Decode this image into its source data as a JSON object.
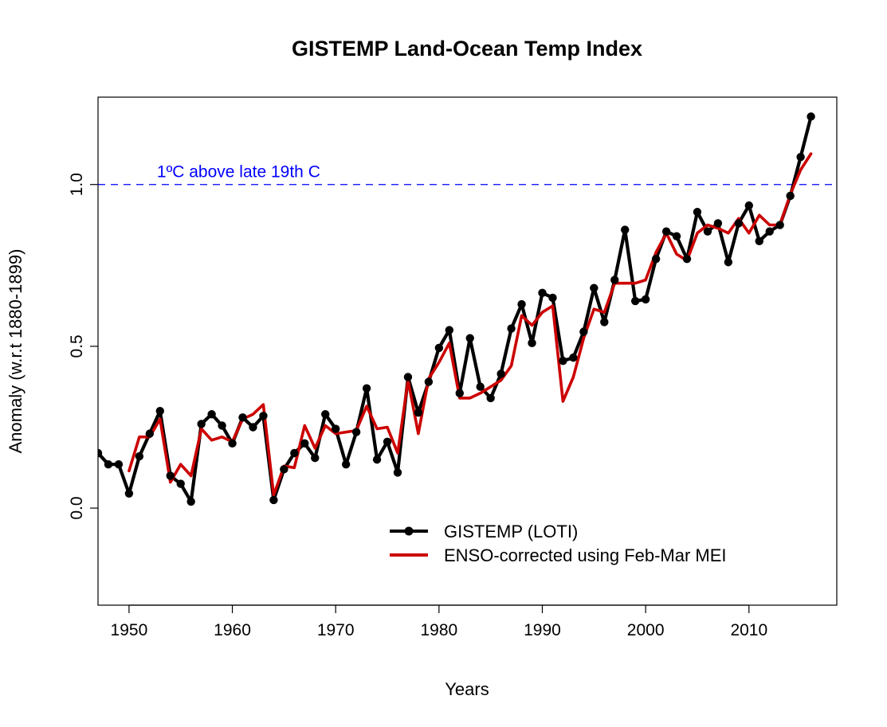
{
  "chart_data": {
    "type": "line",
    "title": "GISTEMP Land-Ocean Temp Index",
    "xlabel": "Years",
    "ylabel": "Anomaly (w.r.t 1880-1899)",
    "xlim": [
      1947,
      2018.5
    ],
    "ylim": [
      -0.3,
      1.27
    ],
    "x_ticks": [
      1950,
      1960,
      1970,
      1980,
      1990,
      2000,
      2010
    ],
    "y_ticks": [
      0.0,
      0.5,
      1.0
    ],
    "y_tick_labels": [
      "0.0",
      "0.5",
      "1.0"
    ],
    "grid": false,
    "legend_position": "bottom-right",
    "reference_line": {
      "y": 1.0,
      "label": "1ºC above late 19th C",
      "color": "#0000ff",
      "style": "dashed"
    },
    "series": [
      {
        "name": "GISTEMP (LOTI)",
        "color": "#000000",
        "markers": true,
        "x": [
          1947,
          1948,
          1949,
          1950,
          1951,
          1952,
          1953,
          1954,
          1955,
          1956,
          1957,
          1958,
          1959,
          1960,
          1961,
          1962,
          1963,
          1964,
          1965,
          1966,
          1967,
          1968,
          1969,
          1970,
          1971,
          1972,
          1973,
          1974,
          1975,
          1976,
          1977,
          1978,
          1979,
          1980,
          1981,
          1982,
          1983,
          1984,
          1985,
          1986,
          1987,
          1988,
          1989,
          1990,
          1991,
          1992,
          1993,
          1994,
          1995,
          1996,
          1997,
          1998,
          1999,
          2000,
          2001,
          2002,
          2003,
          2004,
          2005,
          2006,
          2007,
          2008,
          2009,
          2010,
          2011,
          2012,
          2013,
          2014,
          2015,
          2016
        ],
        "values": [
          0.17,
          0.135,
          0.135,
          0.045,
          0.16,
          0.23,
          0.3,
          0.1,
          0.075,
          0.02,
          0.26,
          0.29,
          0.255,
          0.2,
          0.28,
          0.25,
          0.285,
          0.025,
          0.12,
          0.17,
          0.2,
          0.155,
          0.29,
          0.245,
          0.135,
          0.235,
          0.37,
          0.15,
          0.205,
          0.11,
          0.405,
          0.295,
          0.39,
          0.495,
          0.55,
          0.355,
          0.525,
          0.375,
          0.34,
          0.415,
          0.555,
          0.63,
          0.51,
          0.665,
          0.65,
          0.455,
          0.465,
          0.545,
          0.68,
          0.575,
          0.705,
          0.86,
          0.64,
          0.645,
          0.77,
          0.855,
          0.84,
          0.77,
          0.915,
          0.855,
          0.88,
          0.76,
          0.88,
          0.935,
          0.825,
          0.855,
          0.875,
          0.965,
          1.085,
          1.21
        ]
      },
      {
        "name": "ENSO-corrected using Feb-Mar MEI",
        "color": "#cc0000",
        "markers": false,
        "x": [
          1950,
          1951,
          1952,
          1953,
          1954,
          1955,
          1956,
          1957,
          1958,
          1959,
          1960,
          1961,
          1962,
          1963,
          1964,
          1965,
          1966,
          1967,
          1968,
          1969,
          1970,
          1971,
          1972,
          1973,
          1974,
          1975,
          1976,
          1977,
          1978,
          1979,
          1980,
          1981,
          1982,
          1983,
          1984,
          1985,
          1986,
          1987,
          1988,
          1989,
          1990,
          1991,
          1992,
          1993,
          1994,
          1995,
          1996,
          1997,
          1998,
          1999,
          2000,
          2001,
          2002,
          2003,
          2004,
          2005,
          2006,
          2007,
          2008,
          2009,
          2010,
          2011,
          2012,
          2013,
          2014,
          2015,
          2016
        ],
        "values": [
          0.115,
          0.22,
          0.22,
          0.275,
          0.08,
          0.135,
          0.1,
          0.245,
          0.21,
          0.22,
          0.205,
          0.275,
          0.29,
          0.32,
          0.04,
          0.13,
          0.125,
          0.255,
          0.185,
          0.255,
          0.23,
          0.235,
          0.24,
          0.315,
          0.245,
          0.25,
          0.17,
          0.395,
          0.23,
          0.4,
          0.45,
          0.51,
          0.34,
          0.34,
          0.355,
          0.375,
          0.395,
          0.44,
          0.595,
          0.565,
          0.605,
          0.625,
          0.33,
          0.405,
          0.525,
          0.615,
          0.605,
          0.695,
          0.695,
          0.695,
          0.705,
          0.79,
          0.85,
          0.785,
          0.765,
          0.85,
          0.875,
          0.865,
          0.85,
          0.895,
          0.85,
          0.905,
          0.875,
          0.875,
          0.97,
          1.045,
          1.095
        ]
      }
    ]
  }
}
